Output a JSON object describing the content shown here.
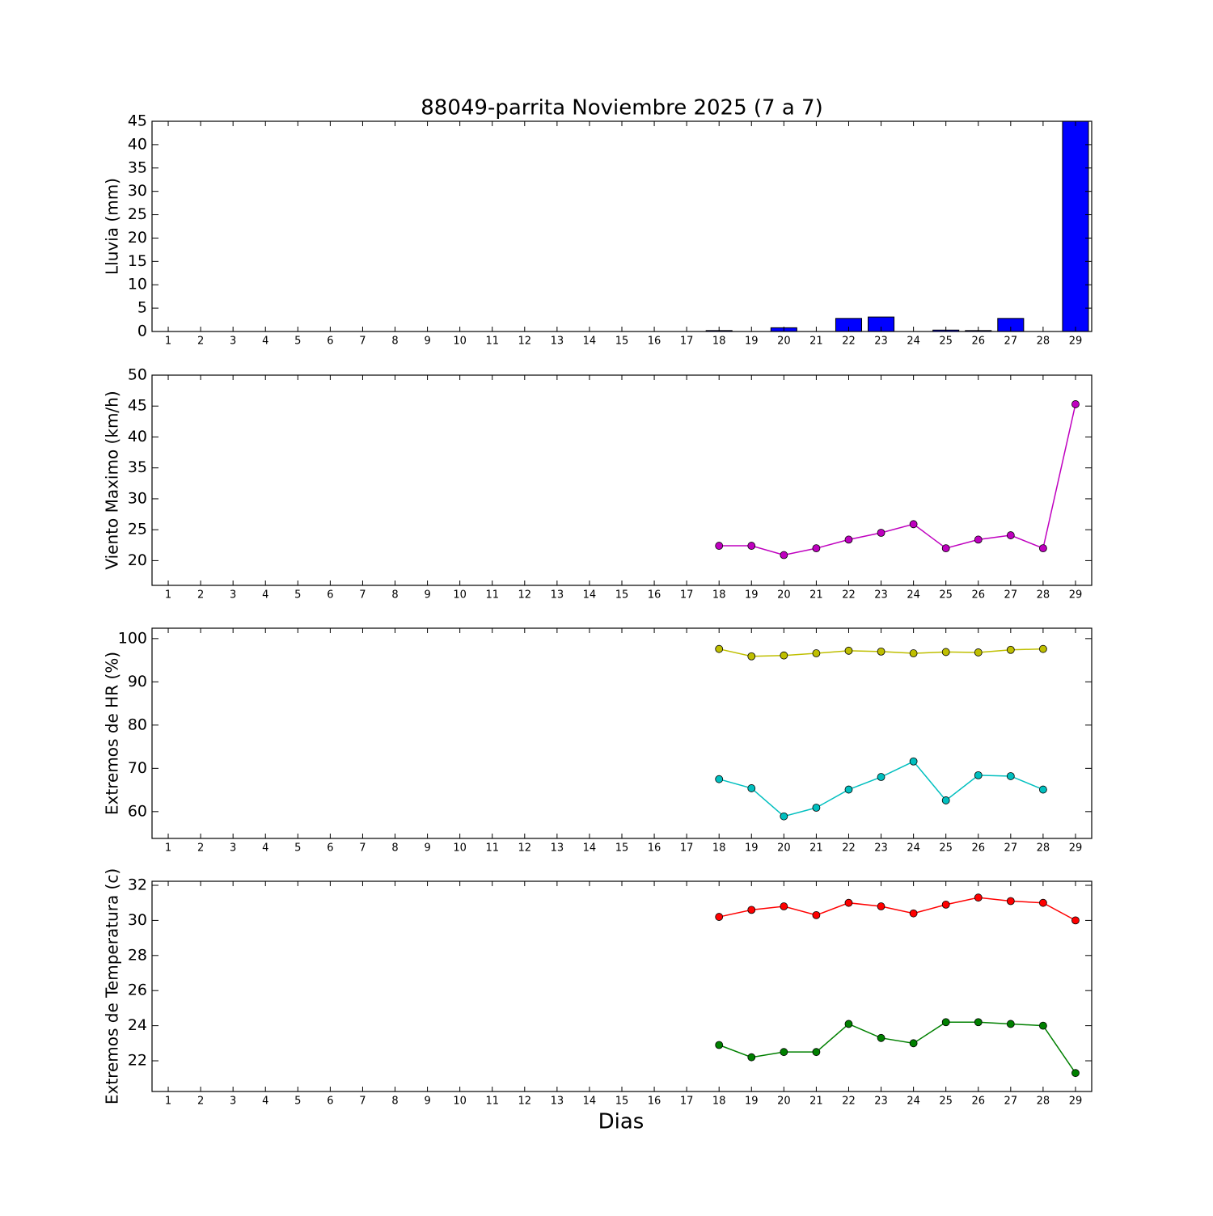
{
  "chart_data": [
    {
      "type": "bar",
      "title": "88049-parrita Noviembre 2025  (7 a 7)",
      "y_label": "Lluvia (mm)",
      "x": [
        18,
        19,
        20,
        21,
        22,
        23,
        24,
        25,
        26,
        27,
        28,
        29
      ],
      "series": [
        {
          "color": "#0000ff",
          "values": [
            0.2,
            0,
            0.8,
            0,
            2.8,
            3.1,
            0,
            0.3,
            0.2,
            2.8,
            0,
            45
          ]
        }
      ],
      "xlim": [
        0.5,
        29.5
      ],
      "xticks": [
        1,
        2,
        3,
        4,
        5,
        6,
        7,
        8,
        9,
        10,
        11,
        12,
        13,
        14,
        15,
        16,
        17,
        18,
        19,
        20,
        21,
        22,
        23,
        24,
        25,
        26,
        27,
        28,
        29
      ],
      "ylim": [
        0,
        45
      ],
      "yticks": [
        0,
        5,
        10,
        15,
        20,
        25,
        30,
        35,
        40,
        45
      ]
    },
    {
      "type": "line",
      "y_label": "Viento Maximo (km/h)",
      "x": [
        18,
        19,
        20,
        21,
        22,
        23,
        24,
        25,
        26,
        27,
        28,
        29
      ],
      "series": [
        {
          "color": "#bf00bf",
          "values": [
            22.4,
            22.4,
            20.9,
            22.0,
            23.4,
            24.5,
            25.9,
            22.0,
            23.4,
            24.1,
            22.0,
            45.3
          ]
        }
      ],
      "xlim": [
        0.5,
        29.5
      ],
      "xticks": [
        1,
        2,
        3,
        4,
        5,
        6,
        7,
        8,
        9,
        10,
        11,
        12,
        13,
        14,
        15,
        16,
        17,
        18,
        19,
        20,
        21,
        22,
        23,
        24,
        25,
        26,
        27,
        28,
        29
      ],
      "ylim": [
        16,
        50
      ],
      "yticks": [
        20,
        25,
        30,
        35,
        40,
        45,
        50
      ]
    },
    {
      "type": "line",
      "y_label": "Extremos de HR (%)",
      "x": [
        18,
        19,
        20,
        21,
        22,
        23,
        24,
        25,
        26,
        27,
        28,
        29
      ],
      "series": [
        {
          "color": "#bfbf00",
          "values": [
            97.6,
            95.9,
            96.1,
            96.6,
            97.2,
            97.0,
            96.6,
            96.9,
            96.8,
            97.4,
            97.6,
            null
          ]
        },
        {
          "color": "#00bfbf",
          "values": [
            67.5,
            65.4,
            58.9,
            60.9,
            65.1,
            68.0,
            71.6,
            62.6,
            68.4,
            68.2,
            65.1,
            null
          ]
        }
      ],
      "xlim": [
        0.5,
        29.5
      ],
      "xticks": [
        1,
        2,
        3,
        4,
        5,
        6,
        7,
        8,
        9,
        10,
        11,
        12,
        13,
        14,
        15,
        16,
        17,
        18,
        19,
        20,
        21,
        22,
        23,
        24,
        25,
        26,
        27,
        28,
        29
      ],
      "ylim": [
        53.8,
        102.4
      ],
      "yticks": [
        60,
        70,
        80,
        90,
        100
      ]
    },
    {
      "type": "line",
      "y_label": "Extremos de Temperatura (c)",
      "x_label": "Dias",
      "x": [
        18,
        19,
        20,
        21,
        22,
        23,
        24,
        25,
        26,
        27,
        28,
        29
      ],
      "series": [
        {
          "color": "#ff0000",
          "values": [
            30.2,
            30.6,
            30.8,
            30.3,
            31.0,
            30.8,
            30.4,
            30.9,
            31.3,
            31.1,
            31.0,
            30.0
          ]
        },
        {
          "color": "#008000",
          "values": [
            22.9,
            22.2,
            22.5,
            22.5,
            24.1,
            23.3,
            23.0,
            24.2,
            24.2,
            24.1,
            24.0,
            21.3
          ]
        }
      ],
      "xlim": [
        0.5,
        29.5
      ],
      "xticks": [
        1,
        2,
        3,
        4,
        5,
        6,
        7,
        8,
        9,
        10,
        11,
        12,
        13,
        14,
        15,
        16,
        17,
        18,
        19,
        20,
        21,
        22,
        23,
        24,
        25,
        26,
        27,
        28,
        29
      ],
      "ylim": [
        20.25,
        32.23
      ],
      "yticks": [
        22,
        24,
        26,
        28,
        30,
        32
      ]
    }
  ]
}
